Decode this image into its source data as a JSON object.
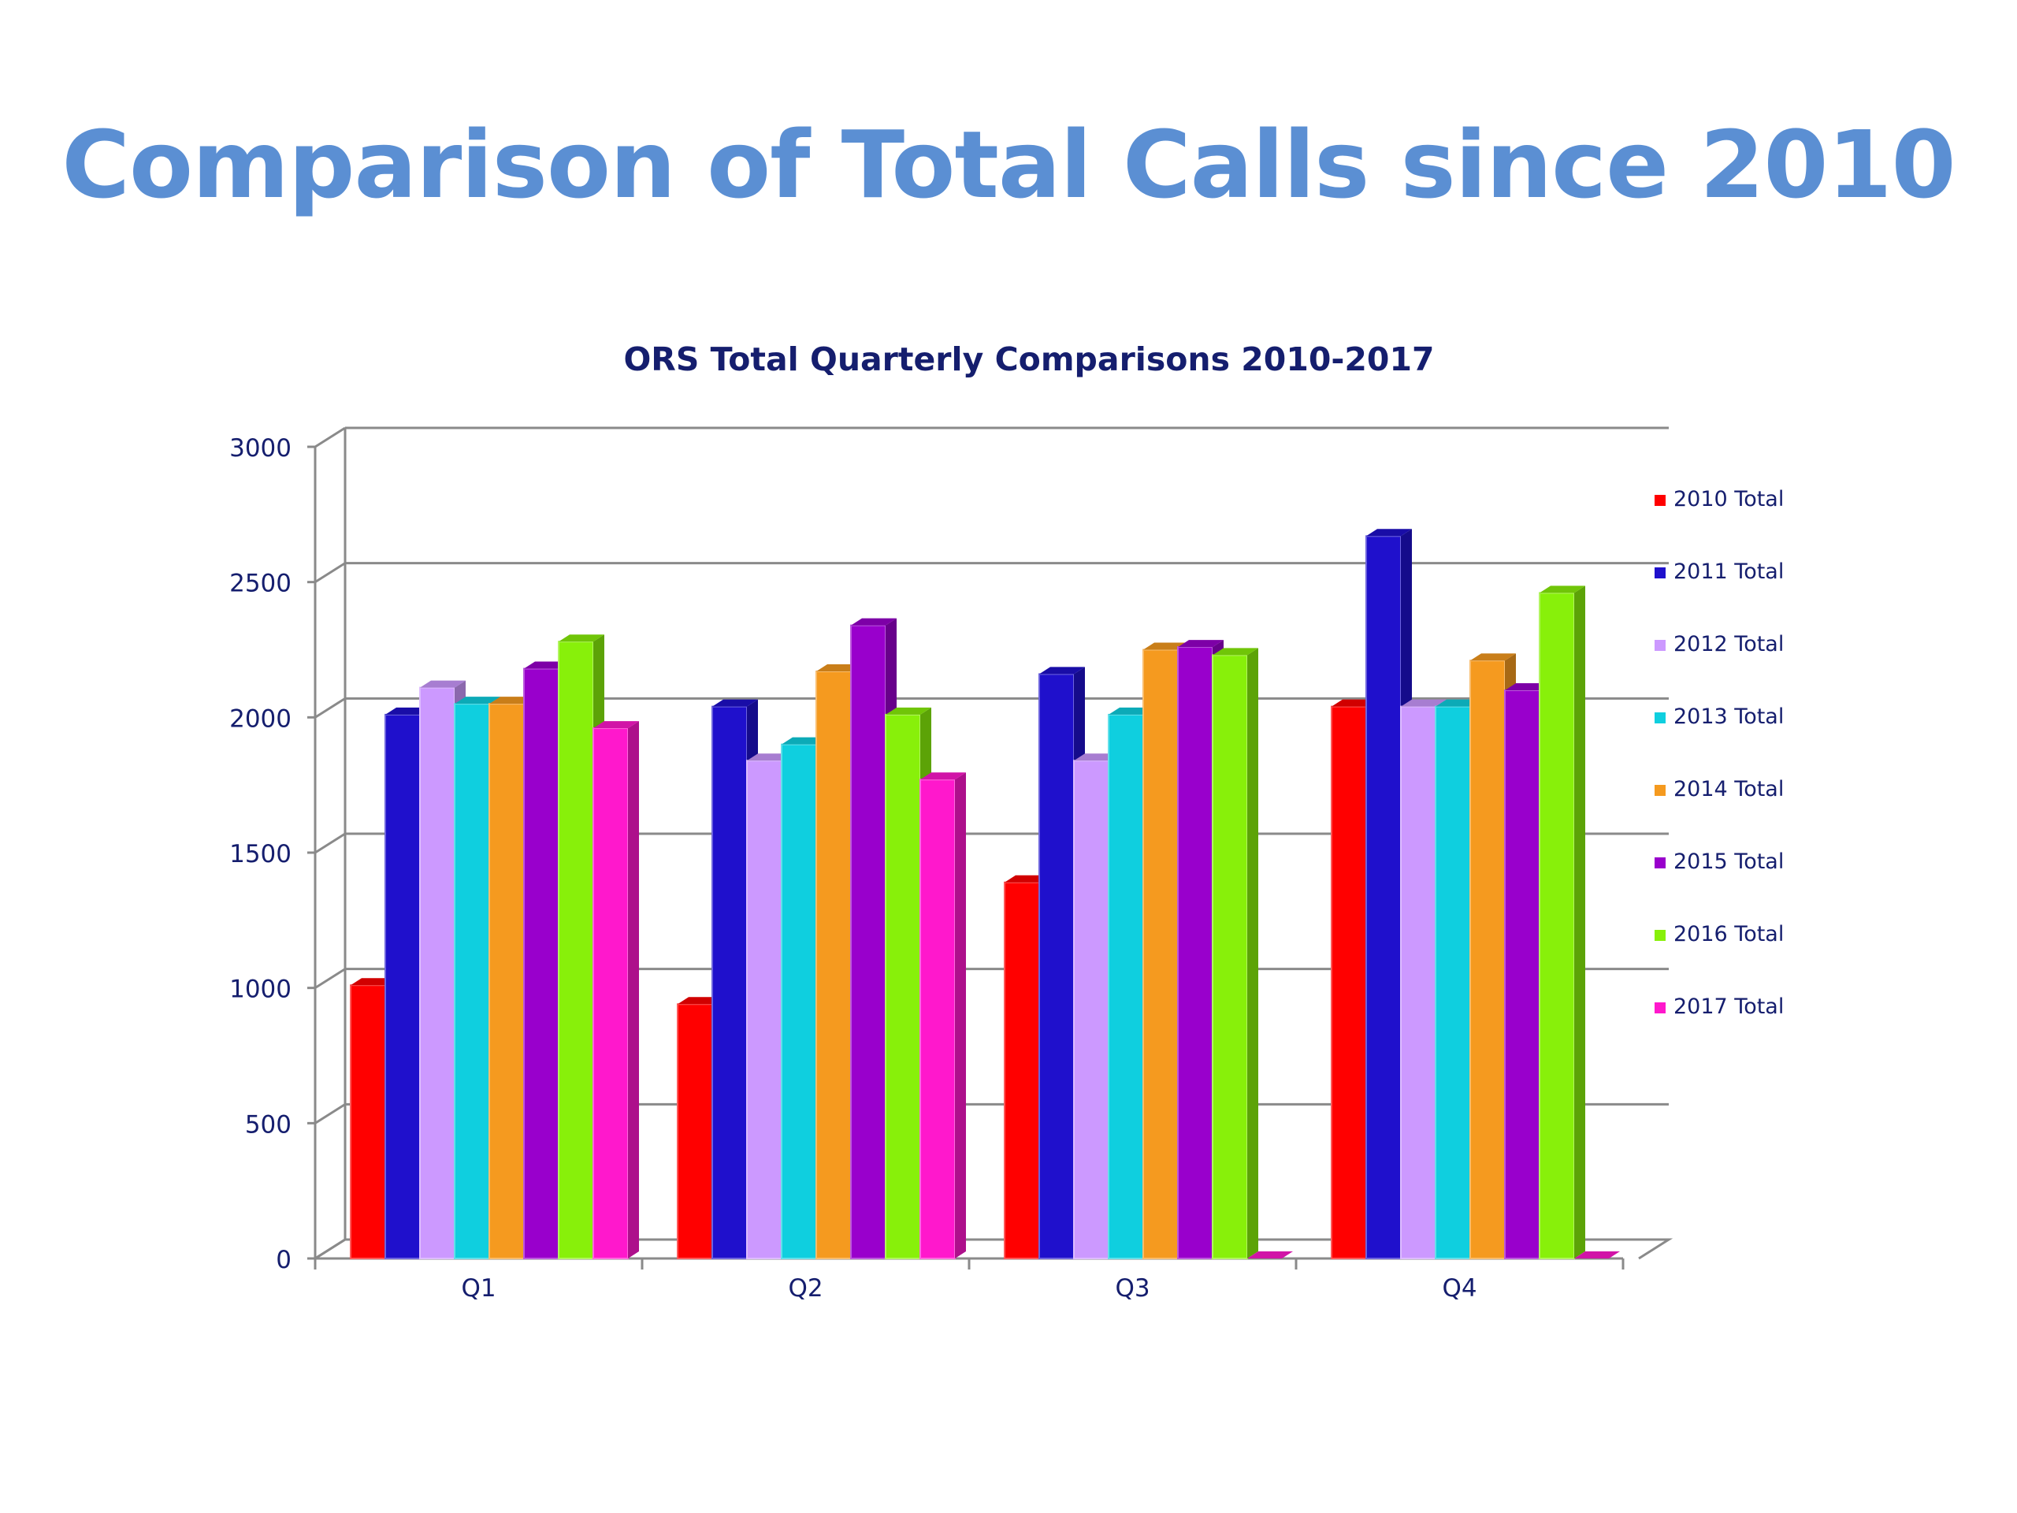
{
  "slide": {
    "title": "Comparison of Total Calls since 2010"
  },
  "chart_data": {
    "type": "bar",
    "title": "ORS Total Quarterly Comparisons 2010-2017",
    "xlabel": "",
    "ylabel": "",
    "categories": [
      "Q1",
      "Q2",
      "Q3",
      "Q4"
    ],
    "ylim": [
      0,
      3000
    ],
    "yticks": [
      0,
      500,
      1000,
      1500,
      2000,
      2500,
      3000
    ],
    "grid": true,
    "legend_position": "right",
    "style": "3d-clustered-column",
    "series": [
      {
        "name": "2010 Total",
        "color": "#ff0000",
        "values": [
          1010,
          940,
          1390,
          2040
        ]
      },
      {
        "name": "2011 Total",
        "color": "#1f10cc",
        "values": [
          2010,
          2040,
          2160,
          2670
        ]
      },
      {
        "name": "2012 Total",
        "color": "#cc99ff",
        "values": [
          2110,
          1840,
          1840,
          2040
        ]
      },
      {
        "name": "2013 Total",
        "color": "#0fcfdf",
        "values": [
          2050,
          1900,
          2010,
          2040
        ]
      },
      {
        "name": "2014 Total",
        "color": "#f59a1f",
        "values": [
          2050,
          2170,
          2250,
          2210
        ]
      },
      {
        "name": "2015 Total",
        "color": "#9900cc",
        "values": [
          2180,
          2340,
          2260,
          2100
        ]
      },
      {
        "name": "2016 Total",
        "color": "#88f00a",
        "values": [
          2280,
          2010,
          2230,
          2460
        ]
      },
      {
        "name": "2017 Total",
        "color": "#ff18cc",
        "values": [
          1960,
          1770,
          0,
          0
        ]
      }
    ]
  }
}
